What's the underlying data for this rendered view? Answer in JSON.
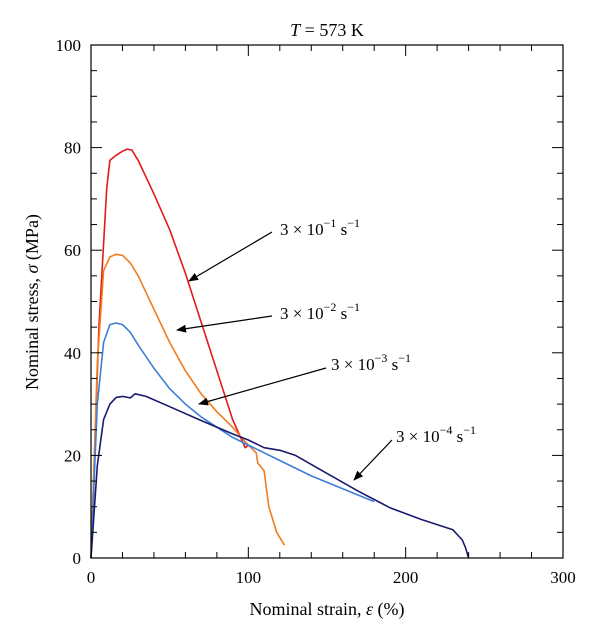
{
  "chart_data": {
    "type": "line",
    "title": {
      "var": "T",
      "rest": " = 573 K"
    },
    "xlabel": {
      "text": "Nominal strain, ",
      "sym": "ε",
      "unit": " (%)"
    },
    "ylabel": {
      "text": "Nominal stress, ",
      "sym": "σ",
      "unit": " (MPa)"
    },
    "xlim": [
      0,
      300
    ],
    "ylim": [
      0,
      100
    ],
    "xticks": [
      "0",
      "100",
      "200",
      "300"
    ],
    "yticks": [
      "0",
      "20",
      "40",
      "60",
      "80",
      "100"
    ],
    "grid": false,
    "series": [
      {
        "color": "#e31a1c",
        "label": {
          "base": "3 × 10",
          "exp": "−1",
          "unit": " s",
          "uexp": "−1"
        },
        "points": [
          [
            0,
            0
          ],
          [
            5,
            45
          ],
          [
            10,
            72
          ],
          [
            12,
            77.5
          ],
          [
            16,
            78.5
          ],
          [
            20,
            79.3
          ],
          [
            23,
            79.7
          ],
          [
            26,
            79.5
          ],
          [
            30,
            77.5
          ],
          [
            40,
            71
          ],
          [
            50,
            64
          ],
          [
            60,
            55.5
          ],
          [
            70,
            46
          ],
          [
            80,
            36.5
          ],
          [
            90,
            27
          ],
          [
            98,
            21.5
          ],
          [
            100,
            22
          ]
        ]
      },
      {
        "color": "#f07d1e",
        "label": {
          "base": "3 × 10",
          "exp": "−2",
          "unit": " s",
          "uexp": "−1"
        },
        "points": [
          [
            0,
            0
          ],
          [
            4,
            38
          ],
          [
            8,
            56
          ],
          [
            12,
            58.7
          ],
          [
            16,
            59.2
          ],
          [
            20,
            59
          ],
          [
            25,
            57.5
          ],
          [
            30,
            55
          ],
          [
            40,
            48.5
          ],
          [
            50,
            42
          ],
          [
            60,
            36.5
          ],
          [
            70,
            32
          ],
          [
            80,
            28.5
          ],
          [
            90,
            25.5
          ],
          [
            97,
            23
          ],
          [
            100,
            22
          ],
          [
            105,
            20.5
          ],
          [
            106,
            18.5
          ],
          [
            110,
            17
          ],
          [
            113,
            10
          ],
          [
            118,
            5
          ],
          [
            123,
            2.5
          ]
        ]
      },
      {
        "color": "#3c7fd8",
        "label": {
          "base": "3 × 10",
          "exp": "−3",
          "unit": " s",
          "uexp": "−1"
        },
        "points": [
          [
            0,
            0
          ],
          [
            4,
            30
          ],
          [
            8,
            42
          ],
          [
            12,
            45.5
          ],
          [
            16,
            45.8
          ],
          [
            20,
            45.5
          ],
          [
            25,
            44
          ],
          [
            30,
            41.5
          ],
          [
            40,
            37
          ],
          [
            50,
            33
          ],
          [
            60,
            30
          ],
          [
            70,
            27.5
          ],
          [
            80,
            25.5
          ],
          [
            90,
            23.5
          ],
          [
            100,
            22
          ],
          [
            110,
            20.5
          ],
          [
            120,
            19
          ],
          [
            140,
            16
          ],
          [
            160,
            13.5
          ],
          [
            180,
            11
          ]
        ]
      },
      {
        "color": "#1a1a6e",
        "label": {
          "base": "3 × 10",
          "exp": "−4",
          "unit": " s",
          "uexp": "−1"
        },
        "points": [
          [
            0,
            0
          ],
          [
            4,
            18
          ],
          [
            8,
            27
          ],
          [
            12,
            30
          ],
          [
            16,
            31.3
          ],
          [
            20,
            31.5
          ],
          [
            25,
            31.2
          ],
          [
            28,
            32
          ],
          [
            35,
            31.5
          ],
          [
            50,
            29.5
          ],
          [
            70,
            26.8
          ],
          [
            90,
            24.2
          ],
          [
            100,
            23
          ],
          [
            110,
            21.5
          ],
          [
            120,
            21
          ],
          [
            130,
            20
          ],
          [
            150,
            16.5
          ],
          [
            170,
            13
          ],
          [
            190,
            9.8
          ],
          [
            210,
            7.5
          ],
          [
            230,
            5.5
          ],
          [
            236,
            3.5
          ],
          [
            238,
            2
          ],
          [
            240,
            0
          ]
        ]
      }
    ]
  }
}
